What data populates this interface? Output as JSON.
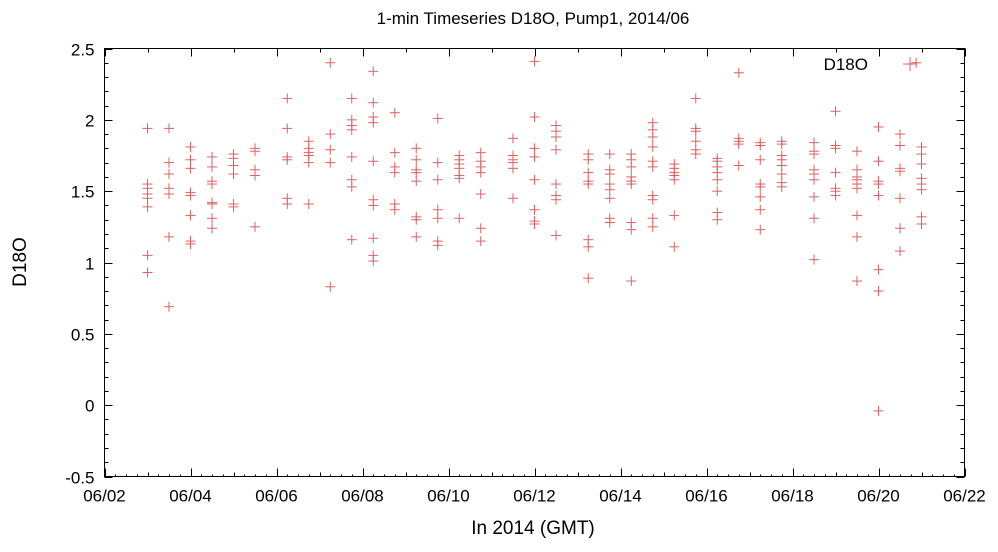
{
  "chart_data": {
    "type": "scatter",
    "title": "1-min Timeseries D18O, Pump1, 2014/06",
    "xlabel": "In 2014 (GMT)",
    "ylabel": "D18O",
    "xlim": [
      "2014-06-02",
      "2014-06-22"
    ],
    "ylim": [
      -0.5,
      2.5
    ],
    "x_tick_labels": [
      "06/02",
      "06/04",
      "06/06",
      "06/08",
      "06/10",
      "06/12",
      "06/14",
      "06/16",
      "06/18",
      "06/20",
      "06/22"
    ],
    "y_tick_labels": [
      "-0.5",
      "0",
      "0.5",
      "1",
      "1.5",
      "2",
      "2.5"
    ],
    "grid": false,
    "legend_position": "top-right",
    "marker_color": "#e06060",
    "series": [
      {
        "name": "D18O",
        "points": [
          [
            "2014-06-03T00:00",
            1.94
          ],
          [
            "2014-06-03T00:00",
            1.55
          ],
          [
            "2014-06-03T00:00",
            1.52
          ],
          [
            "2014-06-03T00:00",
            1.48
          ],
          [
            "2014-06-03T00:00",
            1.45
          ],
          [
            "2014-06-03T00:00",
            1.39
          ],
          [
            "2014-06-03T00:00",
            1.05
          ],
          [
            "2014-06-03T00:00",
            0.93
          ],
          [
            "2014-06-03T12:00",
            1.94
          ],
          [
            "2014-06-03T12:00",
            1.7
          ],
          [
            "2014-06-03T12:00",
            1.62
          ],
          [
            "2014-06-03T12:00",
            1.52
          ],
          [
            "2014-06-03T12:00",
            1.48
          ],
          [
            "2014-06-03T12:00",
            1.18
          ],
          [
            "2014-06-03T12:00",
            0.69
          ],
          [
            "2014-06-04T00:00",
            1.81
          ],
          [
            "2014-06-04T00:00",
            1.72
          ],
          [
            "2014-06-04T00:00",
            1.66
          ],
          [
            "2014-06-04T00:00",
            1.49
          ],
          [
            "2014-06-04T00:00",
            1.47
          ],
          [
            "2014-06-04T00:00",
            1.33
          ],
          [
            "2014-06-04T00:00",
            1.15
          ],
          [
            "2014-06-04T00:00",
            1.13
          ],
          [
            "2014-06-04T12:00",
            1.74
          ],
          [
            "2014-06-04T12:00",
            1.67
          ],
          [
            "2014-06-04T12:00",
            1.57
          ],
          [
            "2014-06-04T12:00",
            1.55
          ],
          [
            "2014-06-04T12:00",
            1.42
          ],
          [
            "2014-06-04T12:00",
            1.41
          ],
          [
            "2014-06-04T12:00",
            1.31
          ],
          [
            "2014-06-04T12:00",
            1.24
          ],
          [
            "2014-06-05T00:00",
            1.76
          ],
          [
            "2014-06-05T00:00",
            1.73
          ],
          [
            "2014-06-05T00:00",
            1.68
          ],
          [
            "2014-06-05T00:00",
            1.62
          ],
          [
            "2014-06-05T00:00",
            1.41
          ],
          [
            "2014-06-05T00:00",
            1.39
          ],
          [
            "2014-06-05T12:00",
            1.8
          ],
          [
            "2014-06-05T12:00",
            1.78
          ],
          [
            "2014-06-05T12:00",
            1.65
          ],
          [
            "2014-06-05T12:00",
            1.61
          ],
          [
            "2014-06-05T12:00",
            1.25
          ],
          [
            "2014-06-06T06:00",
            2.15
          ],
          [
            "2014-06-06T06:00",
            1.94
          ],
          [
            "2014-06-06T06:00",
            1.74
          ],
          [
            "2014-06-06T06:00",
            1.72
          ],
          [
            "2014-06-06T06:00",
            1.45
          ],
          [
            "2014-06-06T06:00",
            1.41
          ],
          [
            "2014-06-06T18:00",
            1.85
          ],
          [
            "2014-06-06T18:00",
            1.8
          ],
          [
            "2014-06-06T18:00",
            1.77
          ],
          [
            "2014-06-06T18:00",
            1.75
          ],
          [
            "2014-06-06T18:00",
            1.7
          ],
          [
            "2014-06-06T18:00",
            1.41
          ],
          [
            "2014-06-07T06:00",
            2.4
          ],
          [
            "2014-06-07T06:00",
            1.9
          ],
          [
            "2014-06-07T06:00",
            1.79
          ],
          [
            "2014-06-07T06:00",
            1.7
          ],
          [
            "2014-06-07T06:00",
            0.83
          ],
          [
            "2014-06-07T18:00",
            2.15
          ],
          [
            "2014-06-07T18:00",
            2.0
          ],
          [
            "2014-06-07T18:00",
            1.96
          ],
          [
            "2014-06-07T18:00",
            1.93
          ],
          [
            "2014-06-07T18:00",
            1.74
          ],
          [
            "2014-06-07T18:00",
            1.58
          ],
          [
            "2014-06-07T18:00",
            1.53
          ],
          [
            "2014-06-07T18:00",
            1.16
          ],
          [
            "2014-06-08T06:00",
            2.34
          ],
          [
            "2014-06-08T06:00",
            2.12
          ],
          [
            "2014-06-08T06:00",
            2.02
          ],
          [
            "2014-06-08T06:00",
            1.98
          ],
          [
            "2014-06-08T06:00",
            1.71
          ],
          [
            "2014-06-08T06:00",
            1.44
          ],
          [
            "2014-06-08T06:00",
            1.4
          ],
          [
            "2014-06-08T06:00",
            1.17
          ],
          [
            "2014-06-08T06:00",
            1.05
          ],
          [
            "2014-06-08T06:00",
            1.01
          ],
          [
            "2014-06-08T18:00",
            2.05
          ],
          [
            "2014-06-08T18:00",
            1.77
          ],
          [
            "2014-06-08T18:00",
            1.67
          ],
          [
            "2014-06-08T18:00",
            1.63
          ],
          [
            "2014-06-08T18:00",
            1.41
          ],
          [
            "2014-06-08T18:00",
            1.37
          ],
          [
            "2014-06-09T06:00",
            1.8
          ],
          [
            "2014-06-09T06:00",
            1.72
          ],
          [
            "2014-06-09T06:00",
            1.65
          ],
          [
            "2014-06-09T06:00",
            1.63
          ],
          [
            "2014-06-09T06:00",
            1.57
          ],
          [
            "2014-06-09T06:00",
            1.32
          ],
          [
            "2014-06-09T06:00",
            1.3
          ],
          [
            "2014-06-09T06:00",
            1.18
          ],
          [
            "2014-06-09T18:00",
            2.01
          ],
          [
            "2014-06-09T18:00",
            1.7
          ],
          [
            "2014-06-09T18:00",
            1.58
          ],
          [
            "2014-06-09T18:00",
            1.37
          ],
          [
            "2014-06-09T18:00",
            1.31
          ],
          [
            "2014-06-09T18:00",
            1.15
          ],
          [
            "2014-06-09T18:00",
            1.12
          ],
          [
            "2014-06-10T06:00",
            1.75
          ],
          [
            "2014-06-10T06:00",
            1.72
          ],
          [
            "2014-06-10T06:00",
            1.69
          ],
          [
            "2014-06-10T06:00",
            1.66
          ],
          [
            "2014-06-10T06:00",
            1.61
          ],
          [
            "2014-06-10T06:00",
            1.59
          ],
          [
            "2014-06-10T06:00",
            1.31
          ],
          [
            "2014-06-10T18:00",
            1.77
          ],
          [
            "2014-06-10T18:00",
            1.71
          ],
          [
            "2014-06-10T18:00",
            1.67
          ],
          [
            "2014-06-10T18:00",
            1.63
          ],
          [
            "2014-06-10T18:00",
            1.48
          ],
          [
            "2014-06-10T18:00",
            1.24
          ],
          [
            "2014-06-10T18:00",
            1.15
          ],
          [
            "2014-06-11T12:00",
            1.87
          ],
          [
            "2014-06-11T12:00",
            1.75
          ],
          [
            "2014-06-11T12:00",
            1.72
          ],
          [
            "2014-06-11T12:00",
            1.7
          ],
          [
            "2014-06-11T12:00",
            1.66
          ],
          [
            "2014-06-11T12:00",
            1.45
          ],
          [
            "2014-06-12T00:00",
            2.41
          ],
          [
            "2014-06-12T00:00",
            2.02
          ],
          [
            "2014-06-12T00:00",
            1.8
          ],
          [
            "2014-06-12T00:00",
            1.74
          ],
          [
            "2014-06-12T00:00",
            1.58
          ],
          [
            "2014-06-12T00:00",
            1.37
          ],
          [
            "2014-06-12T00:00",
            1.29
          ],
          [
            "2014-06-12T00:00",
            1.27
          ],
          [
            "2014-06-12T12:00",
            1.96
          ],
          [
            "2014-06-12T12:00",
            1.92
          ],
          [
            "2014-06-12T12:00",
            1.88
          ],
          [
            "2014-06-12T12:00",
            1.79
          ],
          [
            "2014-06-12T12:00",
            1.55
          ],
          [
            "2014-06-12T12:00",
            1.47
          ],
          [
            "2014-06-12T12:00",
            1.44
          ],
          [
            "2014-06-12T12:00",
            1.19
          ],
          [
            "2014-06-13T06:00",
            1.76
          ],
          [
            "2014-06-13T06:00",
            1.72
          ],
          [
            "2014-06-13T06:00",
            1.63
          ],
          [
            "2014-06-13T06:00",
            1.57
          ],
          [
            "2014-06-13T06:00",
            1.55
          ],
          [
            "2014-06-13T06:00",
            1.16
          ],
          [
            "2014-06-13T06:00",
            1.11
          ],
          [
            "2014-06-13T06:00",
            0.89
          ],
          [
            "2014-06-13T18:00",
            1.76
          ],
          [
            "2014-06-13T18:00",
            1.65
          ],
          [
            "2014-06-13T18:00",
            1.62
          ],
          [
            "2014-06-13T18:00",
            1.55
          ],
          [
            "2014-06-13T18:00",
            1.51
          ],
          [
            "2014-06-13T18:00",
            1.45
          ],
          [
            "2014-06-13T18:00",
            1.31
          ],
          [
            "2014-06-13T18:00",
            1.28
          ],
          [
            "2014-06-14T06:00",
            1.76
          ],
          [
            "2014-06-14T06:00",
            1.72
          ],
          [
            "2014-06-14T06:00",
            1.67
          ],
          [
            "2014-06-14T06:00",
            1.6
          ],
          [
            "2014-06-14T06:00",
            1.57
          ],
          [
            "2014-06-14T06:00",
            1.55
          ],
          [
            "2014-06-14T06:00",
            1.28
          ],
          [
            "2014-06-14T06:00",
            1.23
          ],
          [
            "2014-06-14T06:00",
            0.87
          ],
          [
            "2014-06-14T18:00",
            1.98
          ],
          [
            "2014-06-14T18:00",
            1.93
          ],
          [
            "2014-06-14T18:00",
            1.88
          ],
          [
            "2014-06-14T18:00",
            1.81
          ],
          [
            "2014-06-14T18:00",
            1.71
          ],
          [
            "2014-06-14T18:00",
            1.67
          ],
          [
            "2014-06-14T18:00",
            1.47
          ],
          [
            "2014-06-14T18:00",
            1.44
          ],
          [
            "2014-06-14T18:00",
            1.31
          ],
          [
            "2014-06-14T18:00",
            1.25
          ],
          [
            "2014-06-15T06:00",
            1.69
          ],
          [
            "2014-06-15T06:00",
            1.66
          ],
          [
            "2014-06-15T06:00",
            1.63
          ],
          [
            "2014-06-15T06:00",
            1.61
          ],
          [
            "2014-06-15T06:00",
            1.58
          ],
          [
            "2014-06-15T06:00",
            1.33
          ],
          [
            "2014-06-15T06:00",
            1.11
          ],
          [
            "2014-06-15T18:00",
            2.15
          ],
          [
            "2014-06-15T18:00",
            1.94
          ],
          [
            "2014-06-15T18:00",
            1.92
          ],
          [
            "2014-06-15T18:00",
            1.85
          ],
          [
            "2014-06-15T18:00",
            1.79
          ],
          [
            "2014-06-15T18:00",
            1.76
          ],
          [
            "2014-06-16T06:00",
            1.73
          ],
          [
            "2014-06-16T06:00",
            1.71
          ],
          [
            "2014-06-16T06:00",
            1.67
          ],
          [
            "2014-06-16T06:00",
            1.63
          ],
          [
            "2014-06-16T06:00",
            1.58
          ],
          [
            "2014-06-16T06:00",
            1.5
          ],
          [
            "2014-06-16T06:00",
            1.35
          ],
          [
            "2014-06-16T06:00",
            1.3
          ],
          [
            "2014-06-16T18:00",
            2.33
          ],
          [
            "2014-06-16T18:00",
            1.87
          ],
          [
            "2014-06-16T18:00",
            1.85
          ],
          [
            "2014-06-16T18:00",
            1.83
          ],
          [
            "2014-06-16T18:00",
            1.68
          ],
          [
            "2014-06-17T06:00",
            1.84
          ],
          [
            "2014-06-17T06:00",
            1.82
          ],
          [
            "2014-06-17T06:00",
            1.72
          ],
          [
            "2014-06-17T06:00",
            1.55
          ],
          [
            "2014-06-17T06:00",
            1.53
          ],
          [
            "2014-06-17T06:00",
            1.46
          ],
          [
            "2014-06-17T06:00",
            1.37
          ],
          [
            "2014-06-17T06:00",
            1.23
          ],
          [
            "2014-06-17T18:00",
            1.85
          ],
          [
            "2014-06-17T18:00",
            1.83
          ],
          [
            "2014-06-17T18:00",
            1.75
          ],
          [
            "2014-06-17T18:00",
            1.72
          ],
          [
            "2014-06-17T18:00",
            1.68
          ],
          [
            "2014-06-17T18:00",
            1.62
          ],
          [
            "2014-06-17T18:00",
            1.56
          ],
          [
            "2014-06-17T18:00",
            1.53
          ],
          [
            "2014-06-18T12:00",
            1.84
          ],
          [
            "2014-06-18T12:00",
            1.78
          ],
          [
            "2014-06-18T12:00",
            1.76
          ],
          [
            "2014-06-18T12:00",
            1.65
          ],
          [
            "2014-06-18T12:00",
            1.62
          ],
          [
            "2014-06-18T12:00",
            1.58
          ],
          [
            "2014-06-18T12:00",
            1.46
          ],
          [
            "2014-06-18T12:00",
            1.31
          ],
          [
            "2014-06-18T12:00",
            1.02
          ],
          [
            "2014-06-19T00:00",
            2.06
          ],
          [
            "2014-06-19T00:00",
            1.82
          ],
          [
            "2014-06-19T00:00",
            1.8
          ],
          [
            "2014-06-19T00:00",
            1.63
          ],
          [
            "2014-06-19T00:00",
            1.52
          ],
          [
            "2014-06-19T00:00",
            1.5
          ],
          [
            "2014-06-19T00:00",
            1.47
          ],
          [
            "2014-06-19T12:00",
            1.78
          ],
          [
            "2014-06-19T12:00",
            1.65
          ],
          [
            "2014-06-19T12:00",
            1.6
          ],
          [
            "2014-06-19T12:00",
            1.58
          ],
          [
            "2014-06-19T12:00",
            1.55
          ],
          [
            "2014-06-19T12:00",
            1.52
          ],
          [
            "2014-06-19T12:00",
            1.33
          ],
          [
            "2014-06-19T12:00",
            1.18
          ],
          [
            "2014-06-19T12:00",
            0.87
          ],
          [
            "2014-06-20T00:00",
            1.95
          ],
          [
            "2014-06-20T00:00",
            1.71
          ],
          [
            "2014-06-20T00:00",
            1.57
          ],
          [
            "2014-06-20T00:00",
            1.55
          ],
          [
            "2014-06-20T00:00",
            1.47
          ],
          [
            "2014-06-20T00:00",
            0.95
          ],
          [
            "2014-06-20T00:00",
            0.8
          ],
          [
            "2014-06-20T00:00",
            -0.04
          ],
          [
            "2014-06-20T12:00",
            1.9
          ],
          [
            "2014-06-20T12:00",
            1.82
          ],
          [
            "2014-06-20T12:00",
            1.66
          ],
          [
            "2014-06-20T12:00",
            1.64
          ],
          [
            "2014-06-20T12:00",
            1.45
          ],
          [
            "2014-06-20T12:00",
            1.24
          ],
          [
            "2014-06-20T12:00",
            1.08
          ],
          [
            "2014-06-20T21:00",
            2.4
          ],
          [
            "2014-06-21T00:00",
            1.81
          ],
          [
            "2014-06-21T00:00",
            1.76
          ],
          [
            "2014-06-21T00:00",
            1.69
          ],
          [
            "2014-06-21T00:00",
            1.59
          ],
          [
            "2014-06-21T00:00",
            1.55
          ],
          [
            "2014-06-21T00:00",
            1.51
          ],
          [
            "2014-06-21T00:00",
            1.32
          ],
          [
            "2014-06-21T00:00",
            1.27
          ]
        ]
      }
    ]
  }
}
